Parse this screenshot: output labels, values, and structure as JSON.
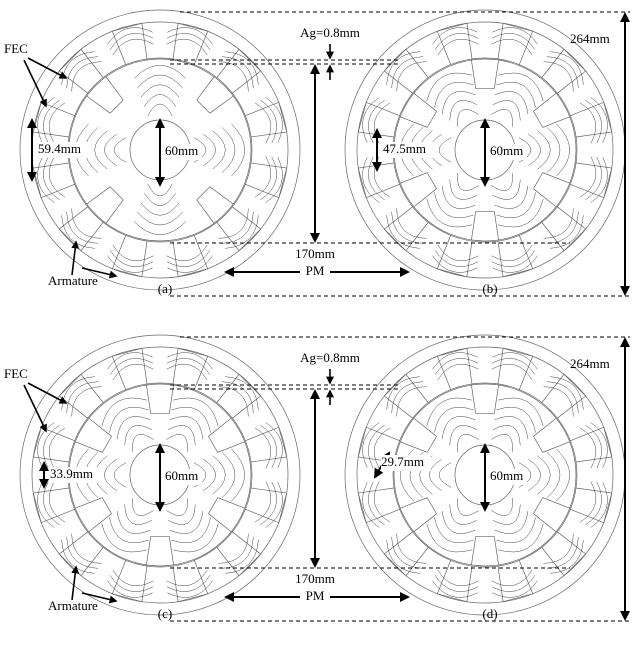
{
  "rows": [
    {
      "fec": "FEC",
      "air_gap": "Ag=0.8mm",
      "outer_diameter": "264mm",
      "rotor_diameter": "170mm",
      "pm": "PM",
      "armature": "Armature",
      "panels": [
        {
          "label": "(a)",
          "width": "59.4mm",
          "shaft": "60mm"
        },
        {
          "label": "(b)",
          "width": "47.5mm",
          "shaft": "60mm"
        }
      ]
    },
    {
      "fec": "FEC",
      "air_gap": "Ag=0.8mm",
      "outer_diameter": "264mm",
      "rotor_diameter": "170mm",
      "pm": "PM",
      "armature": "Armature",
      "panels": [
        {
          "label": "(c)",
          "width": "33.9mm",
          "shaft": "60mm"
        },
        {
          "label": "(d)",
          "width": "29.7mm",
          "shaft": "60mm"
        }
      ]
    }
  ]
}
